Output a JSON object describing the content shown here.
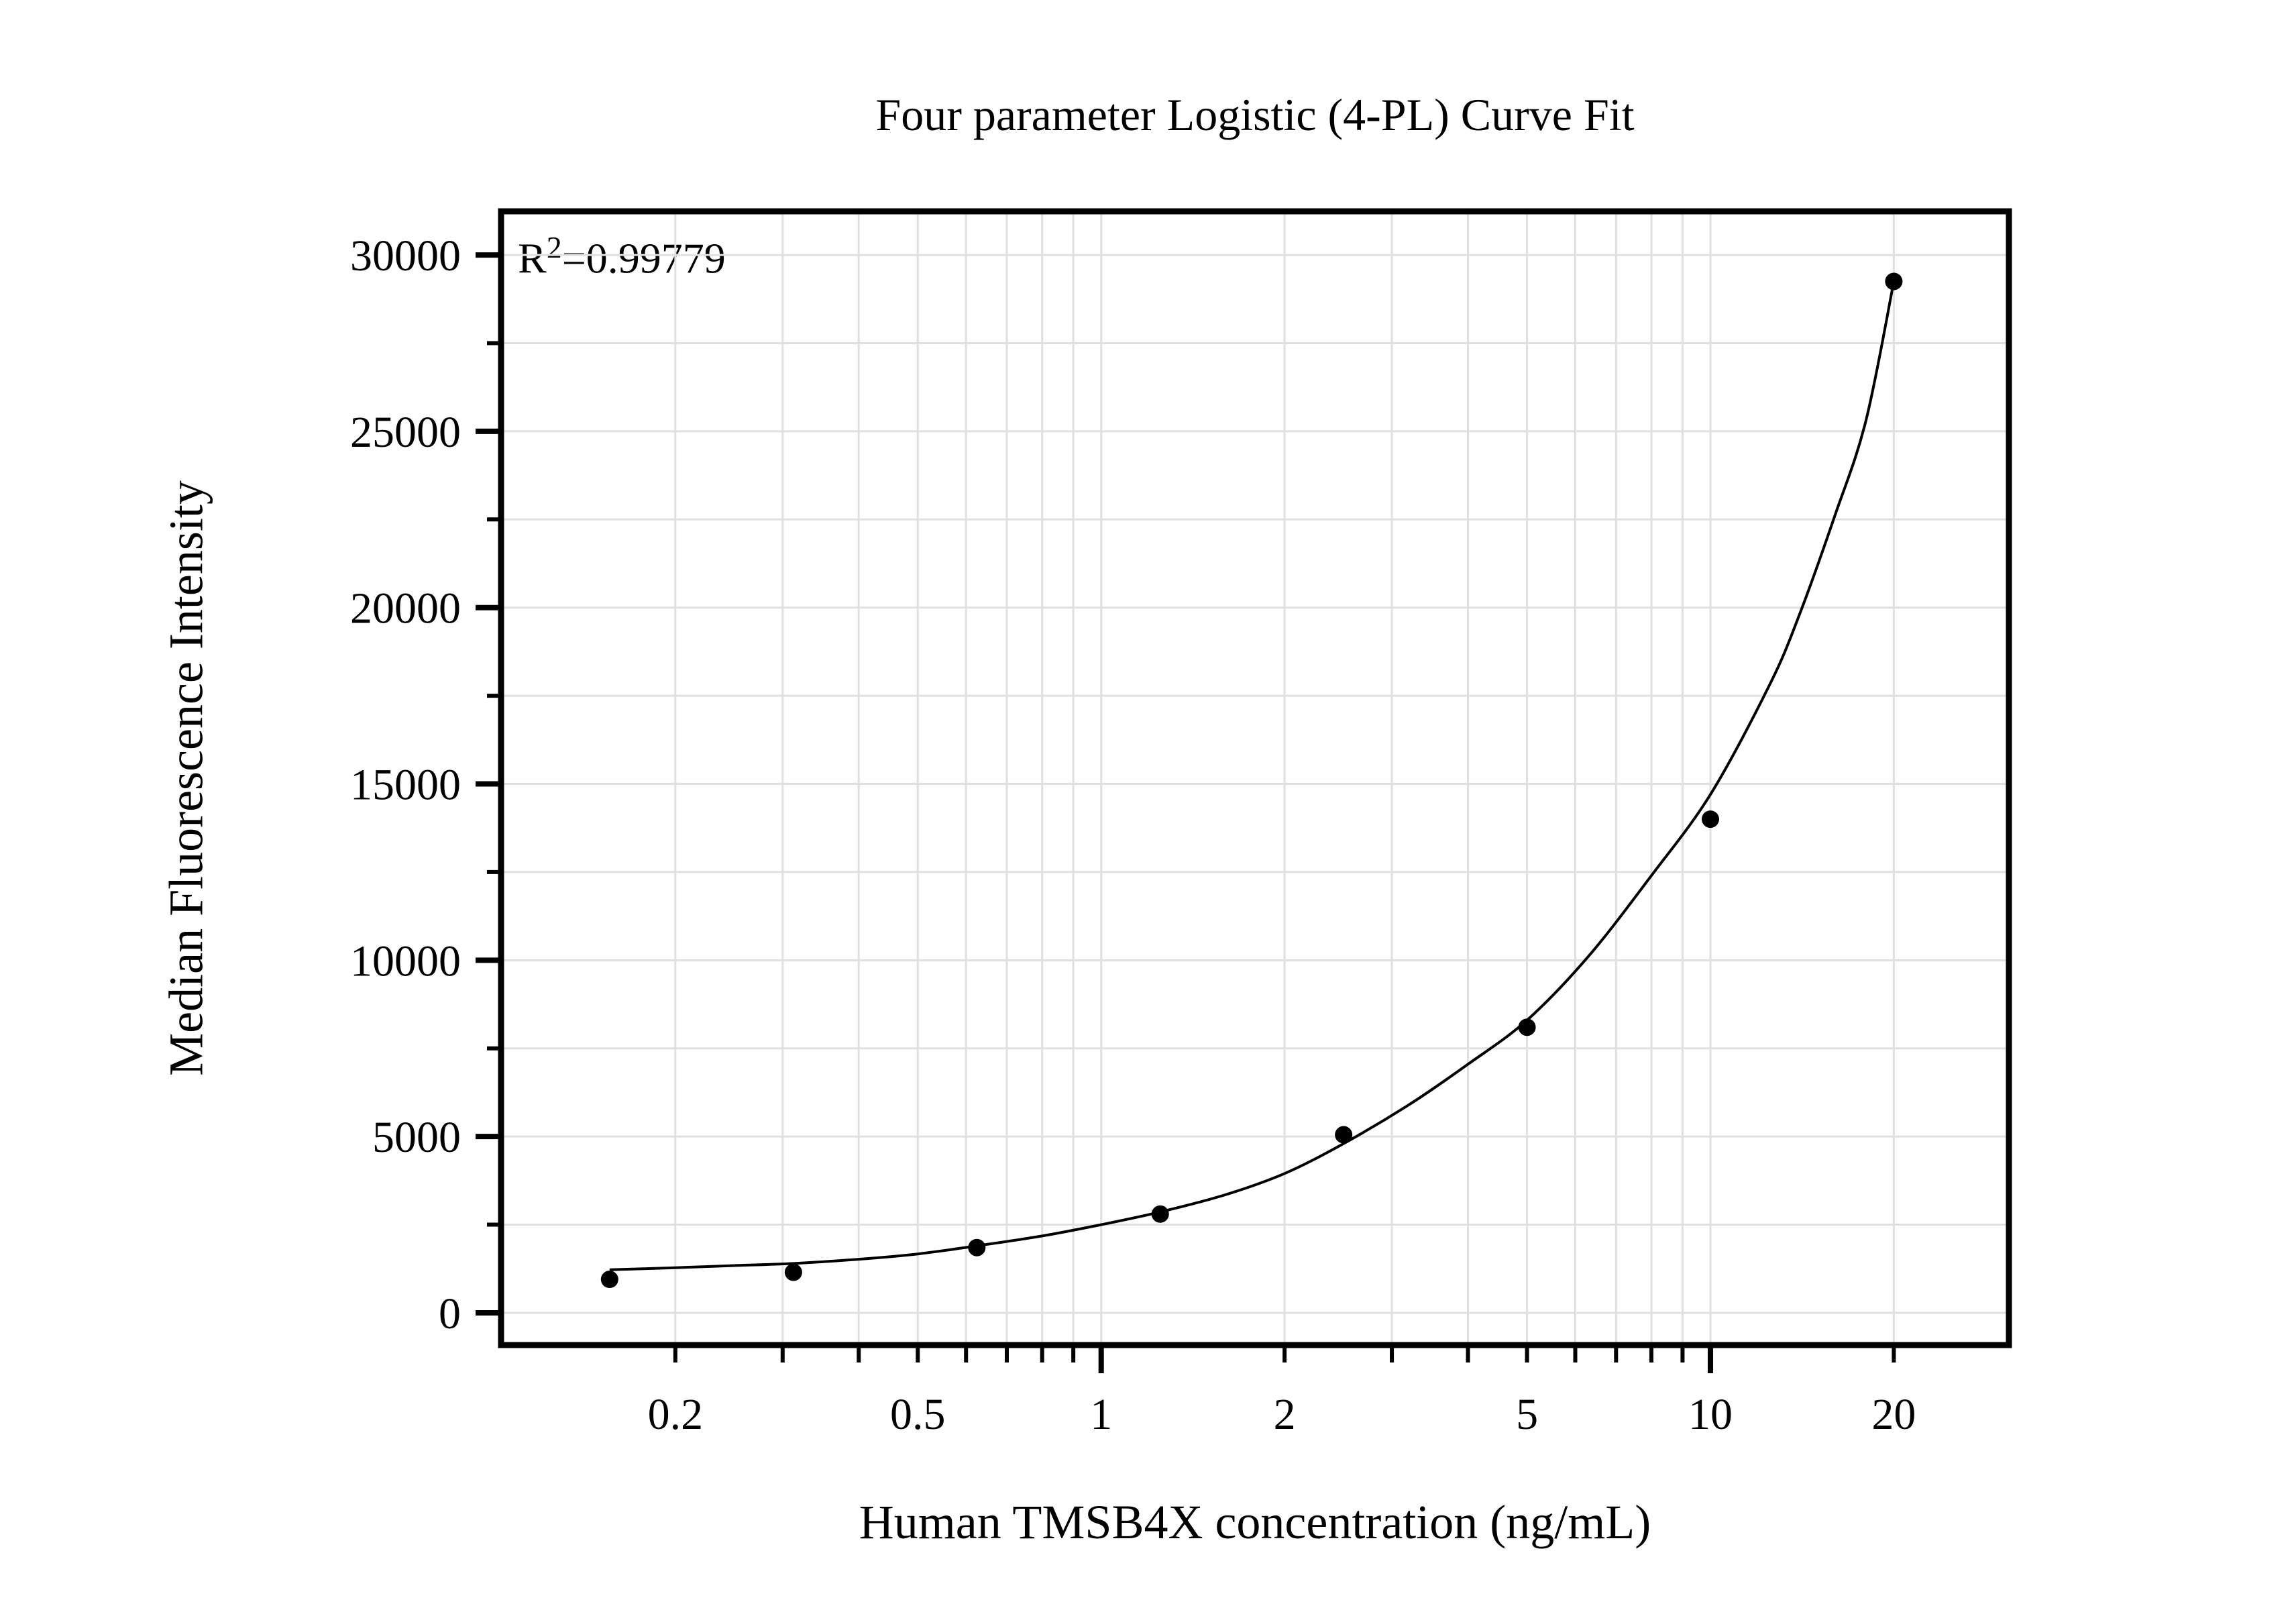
{
  "chart_data": {
    "type": "scatter",
    "title": "Four parameter Logistic (4-PL) Curve Fit",
    "xlabel": "Human TMSB4X concentration (ng/mL)",
    "ylabel": "Median Fluorescence Intensity",
    "annotation": {
      "base": "R",
      "sup": "2",
      "value": "=0.99779"
    },
    "r_squared": "0.99779",
    "x_scale": "log",
    "xlim": [
      0.1035,
      30.9
    ],
    "ylim": [
      -914,
      31238
    ],
    "grid": true,
    "y_major_ticks": [
      0,
      5000,
      10000,
      15000,
      20000,
      25000,
      30000
    ],
    "y_minor_ticks": [
      2500,
      7500,
      12500,
      17500,
      22500,
      27500
    ],
    "x_labeled_ticks": [
      0.2,
      0.5,
      1,
      2,
      5,
      10,
      20
    ],
    "x_decade_ticks": [
      1,
      10
    ],
    "x_minor_ticks": [
      0.2,
      0.3,
      0.4,
      0.5,
      0.6,
      0.7,
      0.8,
      0.9,
      1,
      2,
      3,
      4,
      5,
      6,
      7,
      8,
      9,
      10,
      20
    ],
    "series": [
      {
        "name": "standard-points",
        "type": "scatter",
        "x": [
          0.156,
          0.3125,
          0.625,
          1.25,
          2.5,
          5,
          10,
          20
        ],
        "y": [
          950,
          1150,
          1850,
          2800,
          5050,
          8100,
          14000,
          29250
        ]
      },
      {
        "name": "4pl-fit-curve",
        "type": "line",
        "x": [
          0.156,
          0.2,
          0.25,
          0.3125,
          0.4,
          0.5,
          0.625,
          0.8,
          1.0,
          1.25,
          1.6,
          2.0,
          2.5,
          3.2,
          4.0,
          5.0,
          6.3,
          8.0,
          10.0,
          12.5,
          14.0,
          16.0,
          18.0,
          20.0
        ],
        "y": [
          1220,
          1280,
          1340,
          1400,
          1520,
          1670,
          1900,
          2180,
          2500,
          2860,
          3350,
          3950,
          4800,
          5900,
          7050,
          8300,
          10100,
          12400,
          14700,
          17800,
          19800,
          22600,
          25300,
          29250
        ]
      }
    ],
    "colors": {
      "background": "#ffffff",
      "text": "#000000",
      "axis": "#000000",
      "grid": "#e0e0e0",
      "points": "#000000",
      "curve": "#000000"
    }
  }
}
